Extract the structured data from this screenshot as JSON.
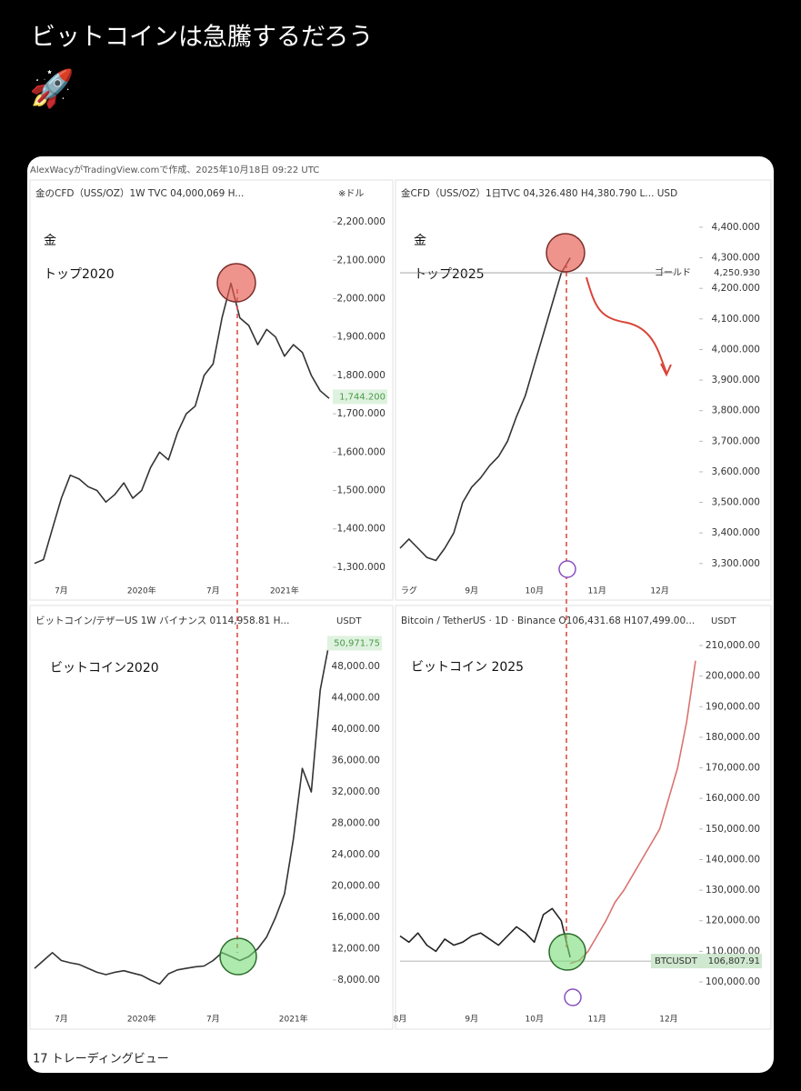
{
  "post": {
    "text": "ビットコインは急騰するだろう",
    "emoji": "🚀"
  },
  "credit": "AlexWacyがTradingView.comで作成、2025年10月18日 09:22 UTC",
  "footer": "17 トレーディングビュー",
  "chart_data": [
    {
      "type": "line",
      "title": "金のCFD（USS/OZ）1W TVC 04,000,069 H...",
      "unit_label": "※ドル",
      "annotations": [
        "金",
        "トップ2020"
      ],
      "price_tag": {
        "label": "1,744.200",
        "value": 1744.2
      },
      "categories": [
        null,
        null,
        null,
        "7月",
        null,
        null,
        null,
        null,
        null,
        null,
        null,
        null,
        "2020年",
        null,
        null,
        null,
        null,
        null,
        null,
        null,
        "7月",
        null,
        null,
        null,
        null,
        null,
        null,
        null,
        "2021年",
        null,
        null,
        null,
        null,
        null
      ],
      "series": [
        {
          "color": "#333333",
          "values": [
            1310,
            1320,
            1400,
            1480,
            1540,
            1530,
            1510,
            1500,
            1470,
            1490,
            1520,
            1480,
            1500,
            1560,
            1600,
            1580,
            1650,
            1700,
            1720,
            1800,
            1830,
            1950,
            2040,
            1950,
            1930,
            1880,
            1920,
            1900,
            1850,
            1880,
            1860,
            1800,
            1760,
            1740
          ]
        }
      ],
      "ylim": [
        1262,
        2257
      ],
      "yticks": [
        {
          "value": 2200,
          "label": "2,200.000"
        },
        {
          "value": 2100,
          "label": "2,100.000"
        },
        {
          "value": 2000,
          "label": "2,000.000"
        },
        {
          "value": 1900,
          "label": "1,900.000"
        },
        {
          "value": 1800,
          "label": "1,800.000"
        },
        {
          "value": 1700,
          "label": "1,700.000"
        },
        {
          "value": 1600,
          "label": "1,600.000"
        },
        {
          "value": 1500,
          "label": "1,500.000"
        },
        {
          "value": 1400,
          "label": "1,400.000"
        },
        {
          "value": 1300,
          "label": "1,300.000"
        }
      ]
    },
    {
      "type": "line",
      "title": "金CFD（USS/OZ）1日TVC 04,326.480 H4,380.790 L... USD",
      "annotations": [
        "金",
        "トップ2025"
      ],
      "price_tag": {
        "name": "ゴールド",
        "label": "4,250.930",
        "value": 4250.93
      },
      "categories": [
        null,
        "ラグ",
        null,
        null,
        null,
        null,
        null,
        null,
        "9月",
        null,
        null,
        null,
        null,
        null,
        null,
        "10月",
        null,
        null,
        null,
        null,
        null,
        null,
        "11月",
        null,
        null,
        null,
        null,
        null,
        null,
        "12月",
        null,
        null,
        null,
        null
      ],
      "series": [
        {
          "color": "#333333",
          "values": [
            3350,
            3380,
            3350,
            3320,
            3310,
            3350,
            3400,
            3500,
            3550,
            3580,
            3620,
            3650,
            3700,
            3780,
            3850,
            3950,
            4050,
            4150,
            4250,
            4300,
            null,
            null,
            null,
            null,
            null,
            null,
            null,
            null,
            null,
            null,
            null,
            null,
            null,
            null
          ]
        }
      ],
      "ylim": [
        3240,
        4489
      ],
      "yticks": [
        {
          "value": 4400,
          "label": "4,400.000"
        },
        {
          "value": 4300,
          "label": "4,300.000"
        },
        {
          "value": 4200,
          "label": "4,200.000"
        },
        {
          "value": 4100,
          "label": "4,100.000"
        },
        {
          "value": 4000,
          "label": "4,000.000"
        },
        {
          "value": 3900,
          "label": "3,900.000"
        },
        {
          "value": 3800,
          "label": "3,800.000"
        },
        {
          "value": 3700,
          "label": "3,700.000"
        },
        {
          "value": 3600,
          "label": "3,600.000"
        },
        {
          "value": 3500,
          "label": "3,500.000"
        },
        {
          "value": 3400,
          "label": "3,400.000"
        },
        {
          "value": 3300,
          "label": "3,300.000"
        }
      ]
    },
    {
      "type": "line",
      "title": "ビットコイン/テザーUS 1W バイナンス 0114,958.81 H...",
      "unit_label": "USDT",
      "annotations": [
        "ビットコイン2020"
      ],
      "price_tag": {
        "label": "50,971.75",
        "value": 50971.75
      },
      "categories": [
        null,
        null,
        null,
        "7月",
        null,
        null,
        null,
        null,
        null,
        null,
        null,
        null,
        "2020年",
        null,
        null,
        null,
        null,
        null,
        null,
        null,
        "7月",
        null,
        null,
        null,
        null,
        null,
        null,
        null,
        null,
        "2021年",
        null,
        null,
        null,
        null
      ],
      "series": [
        {
          "color": "#333333",
          "values": [
            9500,
            10500,
            11500,
            10500,
            10200,
            10000,
            9500,
            9000,
            8700,
            9000,
            9200,
            8900,
            8600,
            8000,
            7500,
            8800,
            9300,
            9500,
            9700,
            9800,
            10500,
            11500,
            11000,
            10500,
            11000,
            12000,
            13500,
            16000,
            19000,
            26000,
            35000,
            32000,
            45000,
            50970
          ]
        }
      ],
      "ylim": [
        5450,
        53000
      ],
      "yticks": [
        {
          "value": 48000,
          "label": "48,000.00"
        },
        {
          "value": 44000,
          "label": "44,000.00"
        },
        {
          "value": 40000,
          "label": "40,000.00"
        },
        {
          "value": 36000,
          "label": "36,000.00"
        },
        {
          "value": 32000,
          "label": "32,000.00"
        },
        {
          "value": 28000,
          "label": "28,000.00"
        },
        {
          "value": 24000,
          "label": "24,000.00"
        },
        {
          "value": 20000,
          "label": "20,000.00"
        },
        {
          "value": 16000,
          "label": "16,000.00"
        },
        {
          "value": 12000,
          "label": "12,000.00"
        },
        {
          "value": 8000,
          "label": "8,000.00"
        }
      ]
    },
    {
      "type": "line",
      "title": "Bitcoin / TetherUS · 1D · Binance  O106,431.68  H107,499.00...",
      "unit_label": "USDT",
      "annotations": [
        "ビットコイン 2025"
      ],
      "price_tag": {
        "name": "BTCUSDT",
        "label": "106,807.91",
        "value": 106807.91
      },
      "categories": [
        "8月",
        null,
        null,
        null,
        null,
        null,
        null,
        null,
        "9月",
        null,
        null,
        null,
        null,
        null,
        null,
        "10月",
        null,
        null,
        null,
        null,
        null,
        null,
        "11月",
        null,
        null,
        null,
        null,
        null,
        null,
        null,
        "12月",
        null,
        null,
        null
      ],
      "series": [
        {
          "color": "#222222",
          "values": [
            115000,
            113000,
            116000,
            112000,
            110000,
            114000,
            112000,
            113000,
            115000,
            116000,
            114000,
            112000,
            115000,
            118000,
            116000,
            113000,
            122000,
            124000,
            120000,
            108000,
            null,
            null,
            null,
            null,
            null,
            null,
            null,
            null,
            null,
            null,
            null,
            null,
            null,
            null
          ]
        },
        {
          "color": "#d9736f",
          "values": [
            null,
            null,
            null,
            null,
            null,
            null,
            null,
            null,
            null,
            null,
            null,
            null,
            null,
            null,
            null,
            null,
            null,
            null,
            null,
            106000,
            107000,
            110000,
            115000,
            120000,
            126000,
            130000,
            135000,
            140000,
            145000,
            150000,
            160000,
            170000,
            185000,
            205000
          ]
        }
      ],
      "ylim": [
        94050,
        215950
      ],
      "yticks": [
        {
          "value": 210000,
          "label": "210,000.00"
        },
        {
          "value": 200000,
          "label": "200,000.00"
        },
        {
          "value": 190000,
          "label": "190,000.00"
        },
        {
          "value": 180000,
          "label": "180,000.00"
        },
        {
          "value": 170000,
          "label": "170,000.00"
        },
        {
          "value": 160000,
          "label": "160,000.00"
        },
        {
          "value": 150000,
          "label": "150,000.00"
        },
        {
          "value": 140000,
          "label": "140,000.00"
        },
        {
          "value": 130000,
          "label": "130,000.00"
        },
        {
          "value": 120000,
          "label": "120,000.00"
        },
        {
          "value": 110000,
          "label": "110,000.00"
        },
        {
          "value": 100000,
          "label": "100,000.00"
        }
      ]
    }
  ]
}
